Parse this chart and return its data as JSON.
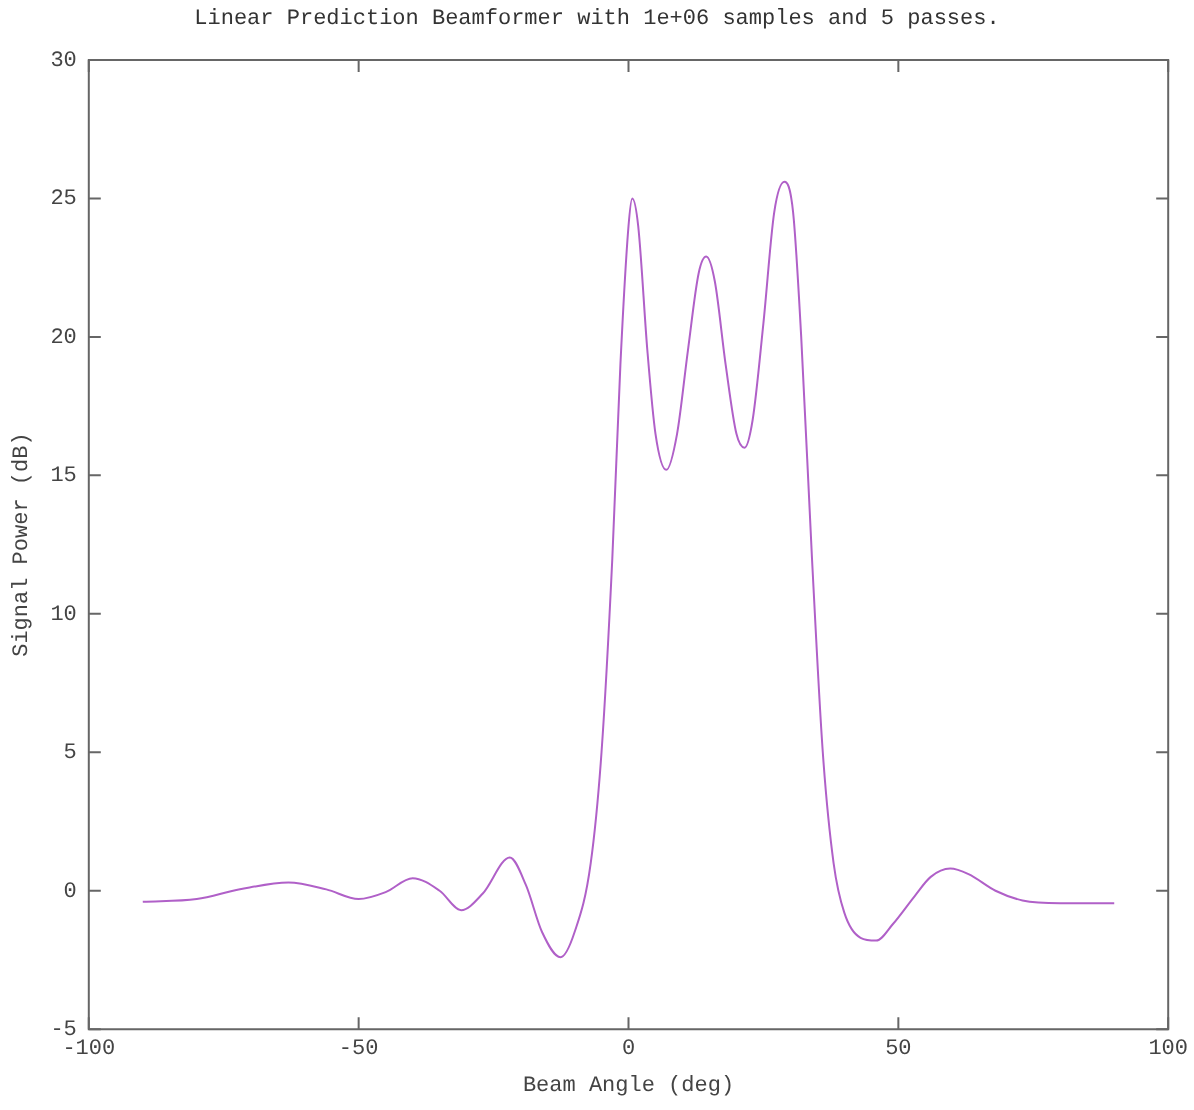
{
  "chart_data": {
    "type": "line",
    "title": "Linear Prediction Beamformer with 1e+06 samples and 5 passes.",
    "xlabel": "Beam Angle (deg)",
    "ylabel": "Signal Power (dB)",
    "x": [
      -90,
      -80,
      -72,
      -63,
      -56,
      -50,
      -45,
      -40,
      -35,
      -31,
      -27,
      -22,
      -19,
      -16,
      -12.6,
      -10,
      -7,
      -5,
      -3,
      -1.5,
      0,
      0.7,
      1.8,
      3.5,
      5,
      7,
      9,
      11,
      13,
      14.4,
      16,
      18,
      20,
      21.5,
      23,
      25,
      27,
      28.9,
      30.5,
      32,
      34,
      36,
      38,
      40,
      43,
      45.9,
      49,
      53,
      56,
      59.6,
      63,
      68,
      73,
      80,
      90
    ],
    "series": [
      {
        "color": "#b060c8",
        "values": [
          -0.4,
          -0.3,
          0.05,
          0.3,
          0.05,
          -0.3,
          -0.05,
          0.45,
          0,
          -0.7,
          -0.1,
          1.2,
          0.2,
          -1.5,
          -2.4,
          -1.5,
          1,
          5,
          12,
          19,
          24,
          25,
          24,
          19.5,
          16.5,
          15.2,
          16.5,
          19.5,
          22.3,
          22.9,
          22,
          19,
          16.5,
          16,
          17,
          20.5,
          24.5,
          25.6,
          24.5,
          20,
          12,
          5,
          1,
          -0.8,
          -1.7,
          -1.8,
          -1.2,
          -0.2,
          0.5,
          0.8,
          0.6,
          0,
          -0.35,
          -0.45,
          -0.45
        ]
      }
    ],
    "xlim": [
      -100,
      100
    ],
    "xticks": [
      -100,
      -50,
      0,
      50,
      100
    ],
    "ylim": [
      -5,
      30
    ],
    "yticks": [
      -5,
      0,
      5,
      10,
      15,
      20,
      25,
      30
    ],
    "grid": false,
    "legend": false,
    "marker": "none",
    "line_style": "solid"
  }
}
